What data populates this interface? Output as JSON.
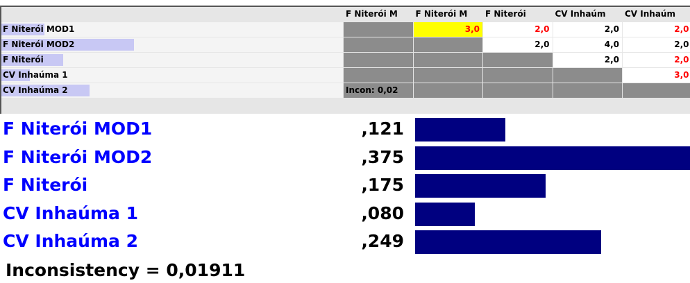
{
  "matrix": {
    "headers": [
      "F Niterói M",
      "F Niterói M",
      "F Niterói",
      "CV Inhaúm",
      "CV Inhaúm"
    ],
    "rows": [
      {
        "label": "F Niterói MOD1",
        "cells": [
          null,
          {
            "text": "3,0",
            "color": "#ff0000",
            "background": "#ffff00"
          },
          {
            "text": "2,0",
            "color": "#ff0000"
          },
          {
            "text": "2,0",
            "color": "#000000"
          },
          {
            "text": "2,0",
            "color": "#ff0000"
          }
        ]
      },
      {
        "label": "F Niterói MOD2",
        "cells": [
          null,
          null,
          {
            "text": "2,0",
            "color": "#000000"
          },
          {
            "text": "4,0",
            "color": "#000000"
          },
          {
            "text": "2,0",
            "color": "#000000"
          }
        ]
      },
      {
        "label": "F Niterói",
        "cells": [
          null,
          null,
          null,
          {
            "text": "2,0",
            "color": "#000000"
          },
          {
            "text": "2,0",
            "color": "#ff0000"
          }
        ]
      },
      {
        "label": "CV Inhaúma 1",
        "cells": [
          null,
          null,
          null,
          null,
          {
            "text": "3,0",
            "color": "#ff0000"
          }
        ]
      },
      {
        "label": "CV Inhaúma 2",
        "cells": [
          {
            "text": "Incon: 0,02",
            "color": "#000000"
          },
          null,
          null,
          null,
          null
        ]
      }
    ]
  },
  "priorities": {
    "labels": [
      "F Niterói MOD1",
      "F Niterói MOD2",
      "F Niterói",
      "CV Inhaúma 1",
      "CV Inhaúma 2"
    ],
    "values": [
      0.121,
      0.375,
      0.175,
      0.08,
      0.249
    ],
    "value_labels": [
      ",121",
      ",375",
      ",175",
      ",080",
      ",249"
    ],
    "color": "#000080"
  },
  "inconsistency": "Inconsistency = 0,01911"
}
